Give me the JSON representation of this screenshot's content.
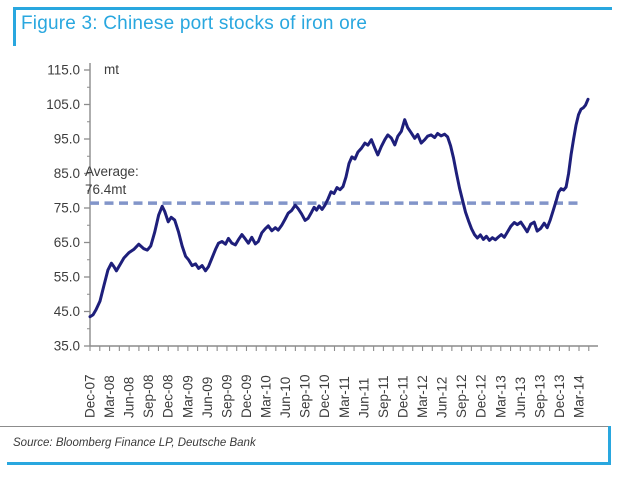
{
  "title": {
    "text": "Figure 3: Chinese port stocks of iron ore"
  },
  "source": {
    "text": "Source: Bloomberg Finance LP, Deutsche Bank"
  },
  "colors": {
    "accent_blue": "#29a7df",
    "series_navy": "#1e1f7b",
    "average_dash": "#8295c9",
    "axis_gray": "#8c8c8c",
    "tick_text": "#3d3d3d"
  },
  "chart_data": {
    "type": "line",
    "title": "Chinese port stocks of iron ore",
    "unit_label": "mt",
    "ylabel": "mt",
    "ylim": [
      35,
      115
    ],
    "y_tick_labels": [
      "115.0",
      "105.0",
      "95.0",
      "85.0",
      "75.0",
      "65.0",
      "55.0",
      "45.0",
      "35.0"
    ],
    "x_categories": [
      "Dec-07",
      "Mar-08",
      "Jun-08",
      "Sep-08",
      "Dec-08",
      "Mar-09",
      "Jun-09",
      "Sep-09",
      "Dec-09",
      "Mar-10",
      "Jun-10",
      "Sep-10",
      "Dec-10",
      "Mar-11",
      "Jun-11",
      "Sep-11",
      "Dec-11",
      "Mar-12",
      "Jun-12",
      "Sep-12",
      "Dec-12",
      "Mar-13",
      "Jun-13",
      "Sep-13",
      "Dec-13",
      "Mar-14"
    ],
    "x_range": [
      "Dec-07",
      "Jun-14"
    ],
    "grid": false,
    "legend_position": "none",
    "average": {
      "value": 76.4,
      "label_line1": "Average:",
      "label_line2": "76.4mt"
    },
    "series": [
      {
        "name": "Chinese port stocks of iron ore (mt)",
        "color": "#1e1f7b",
        "points": [
          [
            0.0,
            43.5
          ],
          [
            0.006,
            44.0
          ],
          [
            0.012,
            45.5
          ],
          [
            0.02,
            48.0
          ],
          [
            0.028,
            52.5
          ],
          [
            0.036,
            57.0
          ],
          [
            0.043,
            59.0
          ],
          [
            0.048,
            58.0
          ],
          [
            0.053,
            56.8
          ],
          [
            0.06,
            58.5
          ],
          [
            0.068,
            60.5
          ],
          [
            0.078,
            62.0
          ],
          [
            0.088,
            63.0
          ],
          [
            0.098,
            64.5
          ],
          [
            0.108,
            63.2
          ],
          [
            0.115,
            62.8
          ],
          [
            0.122,
            64.0
          ],
          [
            0.13,
            68.0
          ],
          [
            0.138,
            73.0
          ],
          [
            0.145,
            75.5
          ],
          [
            0.15,
            74.0
          ],
          [
            0.157,
            71.0
          ],
          [
            0.163,
            72.3
          ],
          [
            0.17,
            71.5
          ],
          [
            0.178,
            68.0
          ],
          [
            0.185,
            64.0
          ],
          [
            0.192,
            61.0
          ],
          [
            0.198,
            60.0
          ],
          [
            0.205,
            58.3
          ],
          [
            0.212,
            58.8
          ],
          [
            0.218,
            57.5
          ],
          [
            0.225,
            58.3
          ],
          [
            0.232,
            56.8
          ],
          [
            0.238,
            58.0
          ],
          [
            0.245,
            60.5
          ],
          [
            0.252,
            63.0
          ],
          [
            0.258,
            64.8
          ],
          [
            0.265,
            65.3
          ],
          [
            0.272,
            64.5
          ],
          [
            0.278,
            66.2
          ],
          [
            0.285,
            64.8
          ],
          [
            0.292,
            64.3
          ],
          [
            0.298,
            65.8
          ],
          [
            0.305,
            67.3
          ],
          [
            0.312,
            66.0
          ],
          [
            0.318,
            64.8
          ],
          [
            0.325,
            66.5
          ],
          [
            0.332,
            64.6
          ],
          [
            0.338,
            65.3
          ],
          [
            0.345,
            67.8
          ],
          [
            0.352,
            69.0
          ],
          [
            0.358,
            69.8
          ],
          [
            0.365,
            68.4
          ],
          [
            0.372,
            69.3
          ],
          [
            0.378,
            68.6
          ],
          [
            0.385,
            70.0
          ],
          [
            0.392,
            71.8
          ],
          [
            0.398,
            73.5
          ],
          [
            0.405,
            74.3
          ],
          [
            0.412,
            75.8
          ],
          [
            0.418,
            74.8
          ],
          [
            0.425,
            73.3
          ],
          [
            0.432,
            71.4
          ],
          [
            0.438,
            72.0
          ],
          [
            0.445,
            73.8
          ],
          [
            0.45,
            75.2
          ],
          [
            0.455,
            74.4
          ],
          [
            0.46,
            75.6
          ],
          [
            0.466,
            74.6
          ],
          [
            0.472,
            75.9
          ],
          [
            0.478,
            77.6
          ],
          [
            0.484,
            79.7
          ],
          [
            0.49,
            79.2
          ],
          [
            0.496,
            80.9
          ],
          [
            0.502,
            80.3
          ],
          [
            0.508,
            81.2
          ],
          [
            0.514,
            84.0
          ],
          [
            0.52,
            87.9
          ],
          [
            0.526,
            89.8
          ],
          [
            0.532,
            89.2
          ],
          [
            0.538,
            91.2
          ],
          [
            0.545,
            92.3
          ],
          [
            0.552,
            93.8
          ],
          [
            0.558,
            93.2
          ],
          [
            0.565,
            94.8
          ],
          [
            0.572,
            92.3
          ],
          [
            0.578,
            90.4
          ],
          [
            0.585,
            92.8
          ],
          [
            0.592,
            94.8
          ],
          [
            0.598,
            96.2
          ],
          [
            0.605,
            95.3
          ],
          [
            0.612,
            93.3
          ],
          [
            0.618,
            95.8
          ],
          [
            0.625,
            97.2
          ],
          [
            0.632,
            100.6
          ],
          [
            0.638,
            98.3
          ],
          [
            0.645,
            96.8
          ],
          [
            0.652,
            95.2
          ],
          [
            0.658,
            96.3
          ],
          [
            0.665,
            93.8
          ],
          [
            0.672,
            94.8
          ],
          [
            0.678,
            95.8
          ],
          [
            0.685,
            96.2
          ],
          [
            0.692,
            95.4
          ],
          [
            0.698,
            96.6
          ],
          [
            0.705,
            95.9
          ],
          [
            0.712,
            96.4
          ],
          [
            0.718,
            95.6
          ],
          [
            0.724,
            93.0
          ],
          [
            0.73,
            89.5
          ],
          [
            0.736,
            85.0
          ],
          [
            0.742,
            80.8
          ],
          [
            0.748,
            77.3
          ],
          [
            0.754,
            73.8
          ],
          [
            0.76,
            71.3
          ],
          [
            0.766,
            69.0
          ],
          [
            0.772,
            67.3
          ],
          [
            0.778,
            66.3
          ],
          [
            0.784,
            67.2
          ],
          [
            0.79,
            65.9
          ],
          [
            0.796,
            66.8
          ],
          [
            0.802,
            65.6
          ],
          [
            0.808,
            66.4
          ],
          [
            0.814,
            65.8
          ],
          [
            0.82,
            66.6
          ],
          [
            0.826,
            67.3
          ],
          [
            0.832,
            66.5
          ],
          [
            0.838,
            68.0
          ],
          [
            0.845,
            69.7
          ],
          [
            0.852,
            70.8
          ],
          [
            0.858,
            70.2
          ],
          [
            0.865,
            70.9
          ],
          [
            0.872,
            69.4
          ],
          [
            0.878,
            68.1
          ],
          [
            0.885,
            70.3
          ],
          [
            0.892,
            70.9
          ],
          [
            0.898,
            68.3
          ],
          [
            0.905,
            69.1
          ],
          [
            0.912,
            70.6
          ],
          [
            0.918,
            69.3
          ],
          [
            0.924,
            71.5
          ],
          [
            0.93,
            74.2
          ],
          [
            0.936,
            77.0
          ],
          [
            0.941,
            79.6
          ],
          [
            0.946,
            80.6
          ],
          [
            0.951,
            80.2
          ],
          [
            0.956,
            81.1
          ],
          [
            0.961,
            85.0
          ],
          [
            0.966,
            90.5
          ],
          [
            0.971,
            95.0
          ],
          [
            0.976,
            99.0
          ],
          [
            0.981,
            102.0
          ],
          [
            0.986,
            103.6
          ],
          [
            0.991,
            104.1
          ],
          [
            0.995,
            104.8
          ],
          [
            1.0,
            106.5
          ]
        ]
      }
    ]
  }
}
